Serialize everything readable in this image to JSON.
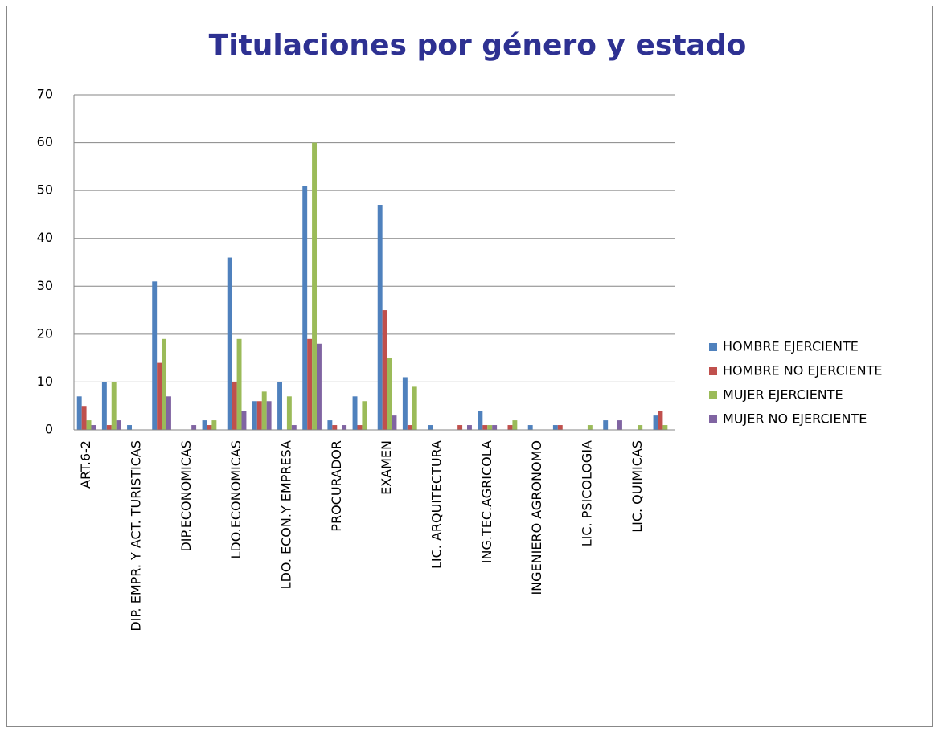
{
  "chart_data": {
    "type": "bar",
    "title": "Titulaciones por género y estado",
    "categories": [
      "ART.6-2",
      null,
      "DIP. EMPR. Y ACT. TURISTICAS",
      null,
      "DIP.ECONOMICAS",
      null,
      "LDO.ECONOMICAS",
      null,
      "LDO. ECON.Y EMPRESA",
      null,
      "PROCURADOR",
      null,
      "EXAMEN",
      null,
      "LIC. ARQUITECTURA",
      null,
      "ING.TEC.AGRICOLA",
      null,
      "INGENIERO AGRONOMO",
      null,
      "LIC. PSICOLOGIA",
      null,
      "LIC. QUIMICAS",
      null
    ],
    "series": [
      {
        "name": "HOMBRE EJERCIENTE",
        "color": "#4f81bd",
        "values": [
          7,
          10,
          1,
          31,
          0,
          2,
          36,
          6,
          10,
          51,
          2,
          7,
          47,
          11,
          1,
          0,
          4,
          0,
          1,
          1,
          0,
          2,
          0,
          3
        ]
      },
      {
        "name": "HOMBRE NO EJERCIENTE",
        "color": "#c0504d",
        "values": [
          5,
          1,
          0,
          14,
          0,
          1,
          10,
          6,
          0,
          19,
          1,
          1,
          25,
          1,
          0,
          1,
          1,
          1,
          0,
          1,
          0,
          0,
          0,
          4
        ]
      },
      {
        "name": "MUJER EJERCIENTE",
        "color": "#9bbb59",
        "values": [
          2,
          10,
          0,
          19,
          0,
          2,
          19,
          8,
          7,
          60,
          0,
          6,
          15,
          9,
          0,
          0,
          1,
          2,
          0,
          0,
          1,
          0,
          1,
          1
        ]
      },
      {
        "name": "MUJER NO EJERCIENTE",
        "color": "#8064a2",
        "values": [
          1,
          2,
          0,
          7,
          1,
          0,
          4,
          6,
          1,
          18,
          1,
          0,
          3,
          0,
          0,
          1,
          1,
          0,
          0,
          0,
          0,
          2,
          0,
          0
        ]
      }
    ],
    "ylim": [
      0,
      70
    ],
    "yticks": [
      0,
      10,
      20,
      30,
      40,
      50,
      60,
      70
    ],
    "grid": true,
    "legend": "right"
  }
}
